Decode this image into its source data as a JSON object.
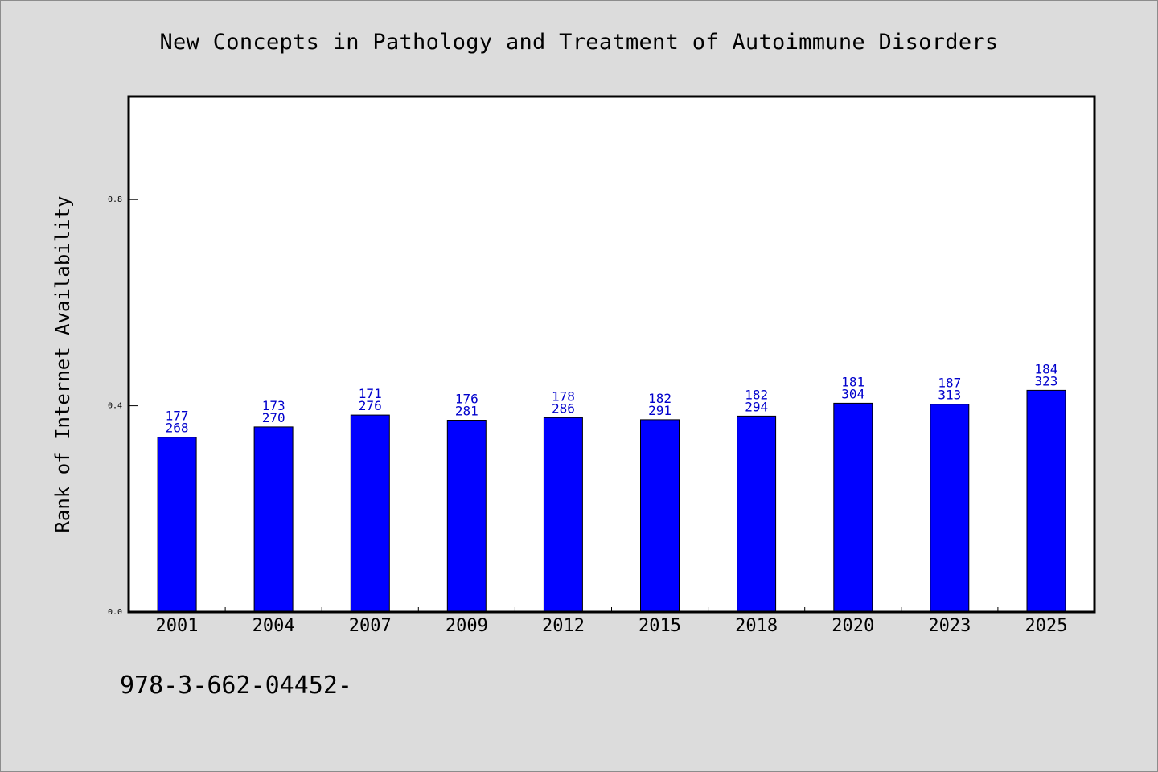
{
  "colors": {
    "background": "#dcdcdc",
    "plot_area": "#ffffff",
    "bar_fill": "#0000ff",
    "data_label": "#0000cc",
    "axis": "#000000"
  },
  "footer": {
    "code": "978-3-662-04452-"
  },
  "chart_data": {
    "type": "bar",
    "title": "New Concepts in Pathology and Treatment of Autoimmune Disorders",
    "xlabel": "",
    "ylabel": "Rank of Internet Availability",
    "ylim": [
      0.0,
      1.0
    ],
    "yticks": [
      0.0,
      0.4,
      0.8
    ],
    "ytick_labels": [
      "0.0",
      "0.4",
      "0.8"
    ],
    "grid": false,
    "legend": "none",
    "categories": [
      "2001",
      "2004",
      "2007",
      "2009",
      "2012",
      "2015",
      "2018",
      "2020",
      "2023",
      "2025"
    ],
    "values": [
      0.339,
      0.359,
      0.382,
      0.372,
      0.377,
      0.373,
      0.38,
      0.405,
      0.403,
      0.43
    ],
    "label_top": [
      "177",
      "173",
      "171",
      "176",
      "178",
      "182",
      "182",
      "181",
      "187",
      "184"
    ],
    "label_bottom": [
      "268",
      "270",
      "276",
      "281",
      "286",
      "291",
      "294",
      "304",
      "313",
      "323"
    ]
  }
}
